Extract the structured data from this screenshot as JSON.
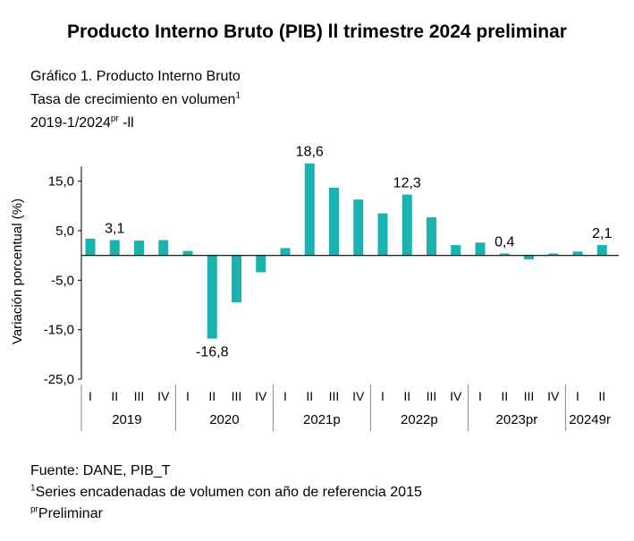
{
  "page": {
    "title": "Producto Interno Bruto (PIB) ll trimestre 2024 preliminar",
    "subtitle_line1": "Gráfico 1. Producto Interno Bruto",
    "subtitle_line2": "Tasa de crecimiento en volumen",
    "subtitle_line2_sup": "1",
    "subtitle_line3_a": "2019-1/2024",
    "subtitle_line3_sup": "pr",
    "subtitle_line3_b": " -ll",
    "footer_source": "Fuente: DANE, PIB_T",
    "footer_note1_sup": "1",
    "footer_note1": "Series encadenadas de volumen con año de referencia 2015",
    "footer_note2_sup": "pr",
    "footer_note2": "Preliminar"
  },
  "colors": {
    "bar": "#18b2b0",
    "axis": "#000000",
    "separator": "#888888"
  },
  "chart_data": {
    "type": "bar",
    "ylabel": "Variación porcentual (%)",
    "ylim": [
      -25,
      20
    ],
    "yticks": [
      15,
      5,
      -5,
      -15,
      -25
    ],
    "ytick_labels": [
      "15,0",
      "5,0",
      "-5,0",
      "-15,0",
      "-25,0"
    ],
    "categories": [
      "I",
      "II",
      "III",
      "IV",
      "I",
      "II",
      "III",
      "IV",
      "I",
      "II",
      "III",
      "IV",
      "I",
      "II",
      "III",
      "IV",
      "I",
      "II",
      "III",
      "IV",
      "I",
      "II"
    ],
    "years": [
      {
        "label": "2019",
        "count": 4
      },
      {
        "label": "2020",
        "count": 4
      },
      {
        "label": "2021p",
        "count": 4
      },
      {
        "label": "2022p",
        "count": 4
      },
      {
        "label": "2023pr",
        "count": 4
      },
      {
        "label": "20249r",
        "count": 2
      }
    ],
    "values": [
      3.4,
      3.1,
      3.0,
      3.1,
      0.9,
      -16.8,
      -9.5,
      -3.4,
      1.5,
      18.6,
      13.7,
      11.3,
      8.5,
      12.3,
      7.7,
      2.1,
      2.6,
      0.4,
      -0.8,
      0.4,
      0.8,
      2.1
    ],
    "data_labels": {
      "1": "3,1",
      "5": "-16,8",
      "9": "18,6",
      "13": "12,3",
      "17": "0,4",
      "21": "2,1"
    }
  }
}
